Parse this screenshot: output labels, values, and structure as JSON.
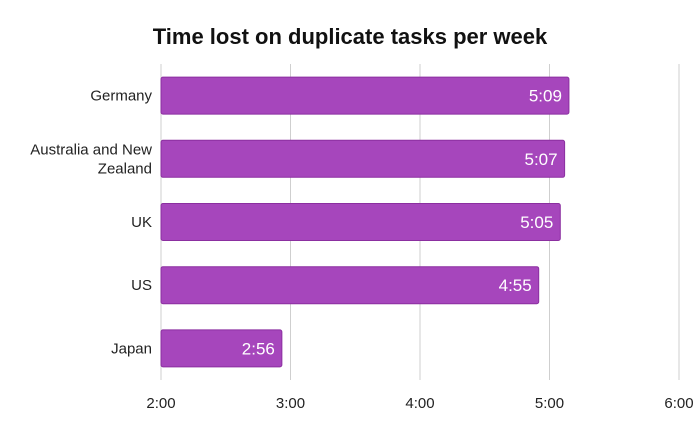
{
  "chart_data": {
    "type": "bar",
    "orientation": "horizontal",
    "title": "Time lost on duplicate tasks per week",
    "categories": [
      "Germany",
      "Australia and New Zealand",
      "UK",
      "US",
      "Japan"
    ],
    "category_label_lines": [
      [
        "Germany"
      ],
      [
        "Australia and New",
        "Zealand"
      ],
      [
        "UK"
      ],
      [
        "US"
      ],
      [
        "Japan"
      ]
    ],
    "values_minutes": [
      309,
      307,
      305,
      295,
      176
    ],
    "data_labels": [
      "5:09",
      "5:07",
      "5:05",
      "4:55",
      "2:56"
    ],
    "xlim_minutes": [
      120,
      360
    ],
    "xticks_minutes": [
      120,
      180,
      240,
      300,
      360
    ],
    "xtick_labels": [
      "2:00",
      "3:00",
      "4:00",
      "5:00",
      "6:00"
    ],
    "grid": true,
    "xlabel": "",
    "ylabel": "",
    "colors": {
      "bar": "#a646bc",
      "bar_edge": "#8b2fa0",
      "label": "#ffffff"
    }
  }
}
